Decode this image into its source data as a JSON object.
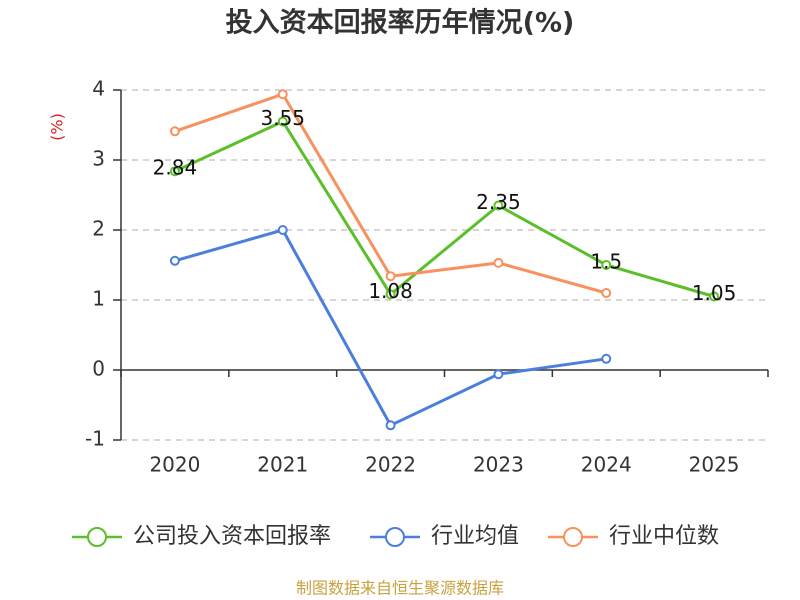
{
  "chart_data": {
    "type": "line",
    "title": "投入资本回报率历年情况(%)",
    "xlabel": "",
    "ylabel": "(%)",
    "ylabel_color": "#e0201c",
    "categories": [
      "2020",
      "2021",
      "2022",
      "2023",
      "2024",
      "2025"
    ],
    "ylim": [
      -1,
      4
    ],
    "yticks": [
      -1,
      0,
      1,
      2,
      3,
      4
    ],
    "grid": true,
    "legend_position": "bottom",
    "series": [
      {
        "name": "公司投入资本回报率",
        "color": "#5bbf2a",
        "values": [
          2.84,
          3.55,
          1.08,
          2.35,
          1.5,
          1.05
        ],
        "data_labels": true
      },
      {
        "name": "行业均值",
        "color": "#4b7fdb",
        "values": [
          1.56,
          2.0,
          -0.79,
          -0.06,
          0.16,
          null
        ],
        "data_labels": false
      },
      {
        "name": "行业中位数",
        "color": "#f8915e",
        "values": [
          3.41,
          3.94,
          1.34,
          1.53,
          1.1,
          null
        ],
        "data_labels": false
      }
    ]
  },
  "footer": {
    "source_text": "制图数据来自恒生聚源数据库",
    "color": "#c9a13f"
  }
}
